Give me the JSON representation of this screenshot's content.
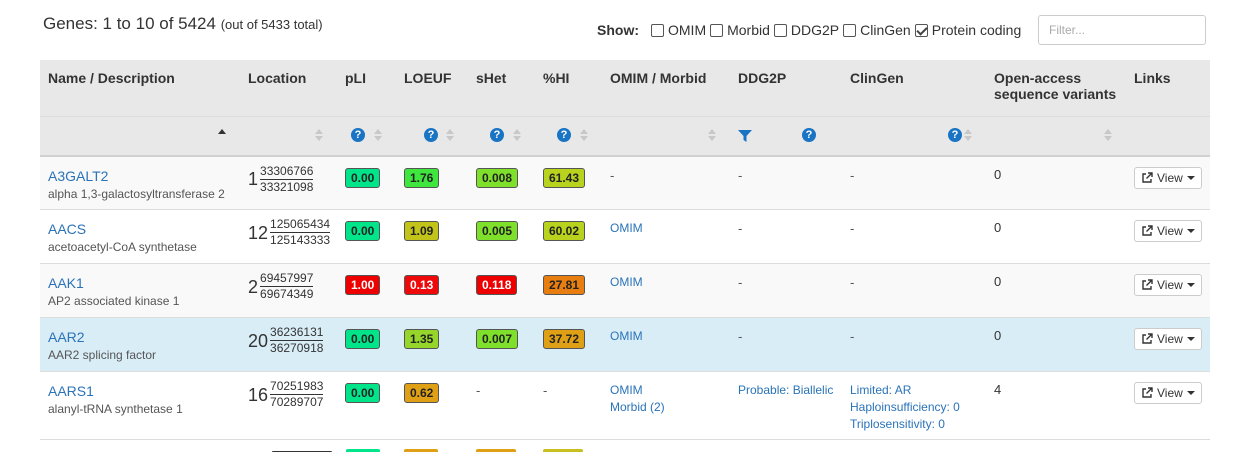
{
  "header": {
    "title": "Genes: 1 to 10 of 5424",
    "subtitle": "(out of 5433 total)",
    "show_label": "Show:",
    "filters": [
      {
        "label": "OMIM",
        "checked": false
      },
      {
        "label": "Morbid",
        "checked": false
      },
      {
        "label": "DDG2P",
        "checked": false
      },
      {
        "label": "ClinGen",
        "checked": false
      },
      {
        "label": "Protein coding",
        "checked": true
      }
    ],
    "filter_placeholder": "Filter..."
  },
  "columns": {
    "name": "Name / Description",
    "location": "Location",
    "pli": "pLI",
    "loeuf": "LOEUF",
    "shet": "sHet",
    "hi": "%HI",
    "omim": "OMIM / Morbid",
    "ddg2p": "DDG2P",
    "clingen": "ClinGen",
    "variants": "Open-access sequence variants",
    "links": "Links"
  },
  "view_label": "View",
  "colors": {
    "header_bg": "#e8e8e8",
    "link": "#2a73b8",
    "highlight_row": "#d9edf7",
    "badge_green": "#00e58a",
    "badge_lime": "#55e055",
    "badge_yellowgreen": "#a9d62e",
    "badge_olive": "#c8c81e",
    "badge_red": "#ee0000",
    "badge_orange": "#e87d10",
    "badge_amber": "#e0a015",
    "badge_gold": "#c8c020"
  },
  "rows": [
    {
      "symbol": "A3GALT2",
      "description": "alpha 1,3-galactosyltransferase 2",
      "chr": "1",
      "start": "33306766",
      "end": "33321098",
      "pli": {
        "v": "0.00",
        "c": "#00e58a",
        "w": false
      },
      "loeuf": {
        "v": "1.76",
        "c": "#3ee63e",
        "w": false
      },
      "shet": {
        "v": "0.008",
        "c": "#7ee02a",
        "w": false
      },
      "hi": {
        "v": "61.43",
        "c": "#b9d21e",
        "w": false
      },
      "omim": "-",
      "morbid": "",
      "ddg2p": "-",
      "clingen": [
        "-"
      ],
      "variants": "0",
      "style": "odd"
    },
    {
      "symbol": "AACS",
      "description": "acetoacetyl-CoA synthetase",
      "chr": "12",
      "start": "125065434",
      "end": "125143333",
      "pli": {
        "v": "0.00",
        "c": "#00e58a",
        "w": false
      },
      "loeuf": {
        "v": "1.09",
        "c": "#c2c41a",
        "w": false
      },
      "shet": {
        "v": "0.005",
        "c": "#7ee02a",
        "w": false
      },
      "hi": {
        "v": "60.02",
        "c": "#b9d21e",
        "w": false
      },
      "omim": "OMIM",
      "morbid": "",
      "ddg2p": "-",
      "clingen": [
        "-"
      ],
      "variants": "0",
      "style": "even"
    },
    {
      "symbol": "AAK1",
      "description": "AP2 associated kinase 1",
      "chr": "2",
      "start": "69457997",
      "end": "69674349",
      "pli": {
        "v": "1.00",
        "c": "#ee0000",
        "w": true
      },
      "loeuf": {
        "v": "0.13",
        "c": "#ee0a0a",
        "w": true
      },
      "shet": {
        "v": "0.118",
        "c": "#ee0000",
        "w": true
      },
      "hi": {
        "v": "27.81",
        "c": "#e87d10",
        "w": false
      },
      "omim": "OMIM",
      "morbid": "",
      "ddg2p": "-",
      "clingen": [
        "-"
      ],
      "variants": "0",
      "style": "odd"
    },
    {
      "symbol": "AAR2",
      "description": "AAR2 splicing factor",
      "chr": "20",
      "start": "36236131",
      "end": "36270918",
      "pli": {
        "v": "0.00",
        "c": "#00e58a",
        "w": false
      },
      "loeuf": {
        "v": "1.35",
        "c": "#96d62a",
        "w": false
      },
      "shet": {
        "v": "0.007",
        "c": "#7ee02a",
        "w": false
      },
      "hi": {
        "v": "37.72",
        "c": "#e0a015",
        "w": false
      },
      "omim": "OMIM",
      "morbid": "",
      "ddg2p": "-",
      "clingen": [
        "-"
      ],
      "variants": "0",
      "style": "hl"
    },
    {
      "symbol": "AARS1",
      "description": "alanyl-tRNA synthetase 1",
      "chr": "16",
      "start": "70251983",
      "end": "70289707",
      "pli": {
        "v": "0.00",
        "c": "#00e58a",
        "w": false
      },
      "loeuf": {
        "v": "0.62",
        "c": "#e0a015",
        "w": false
      },
      "shet": {
        "v": "-",
        "c": "",
        "w": false
      },
      "hi": {
        "v": "-",
        "c": "",
        "w": false
      },
      "omim": "OMIM",
      "morbid": "Morbid (2)",
      "ddg2p": "Probable: Biallelic",
      "clingen": [
        "Limited: AR",
        "Haploinsufficiency: 0",
        "Triplosensitivity: 0"
      ],
      "variants": "4",
      "style": "even tall"
    }
  ]
}
